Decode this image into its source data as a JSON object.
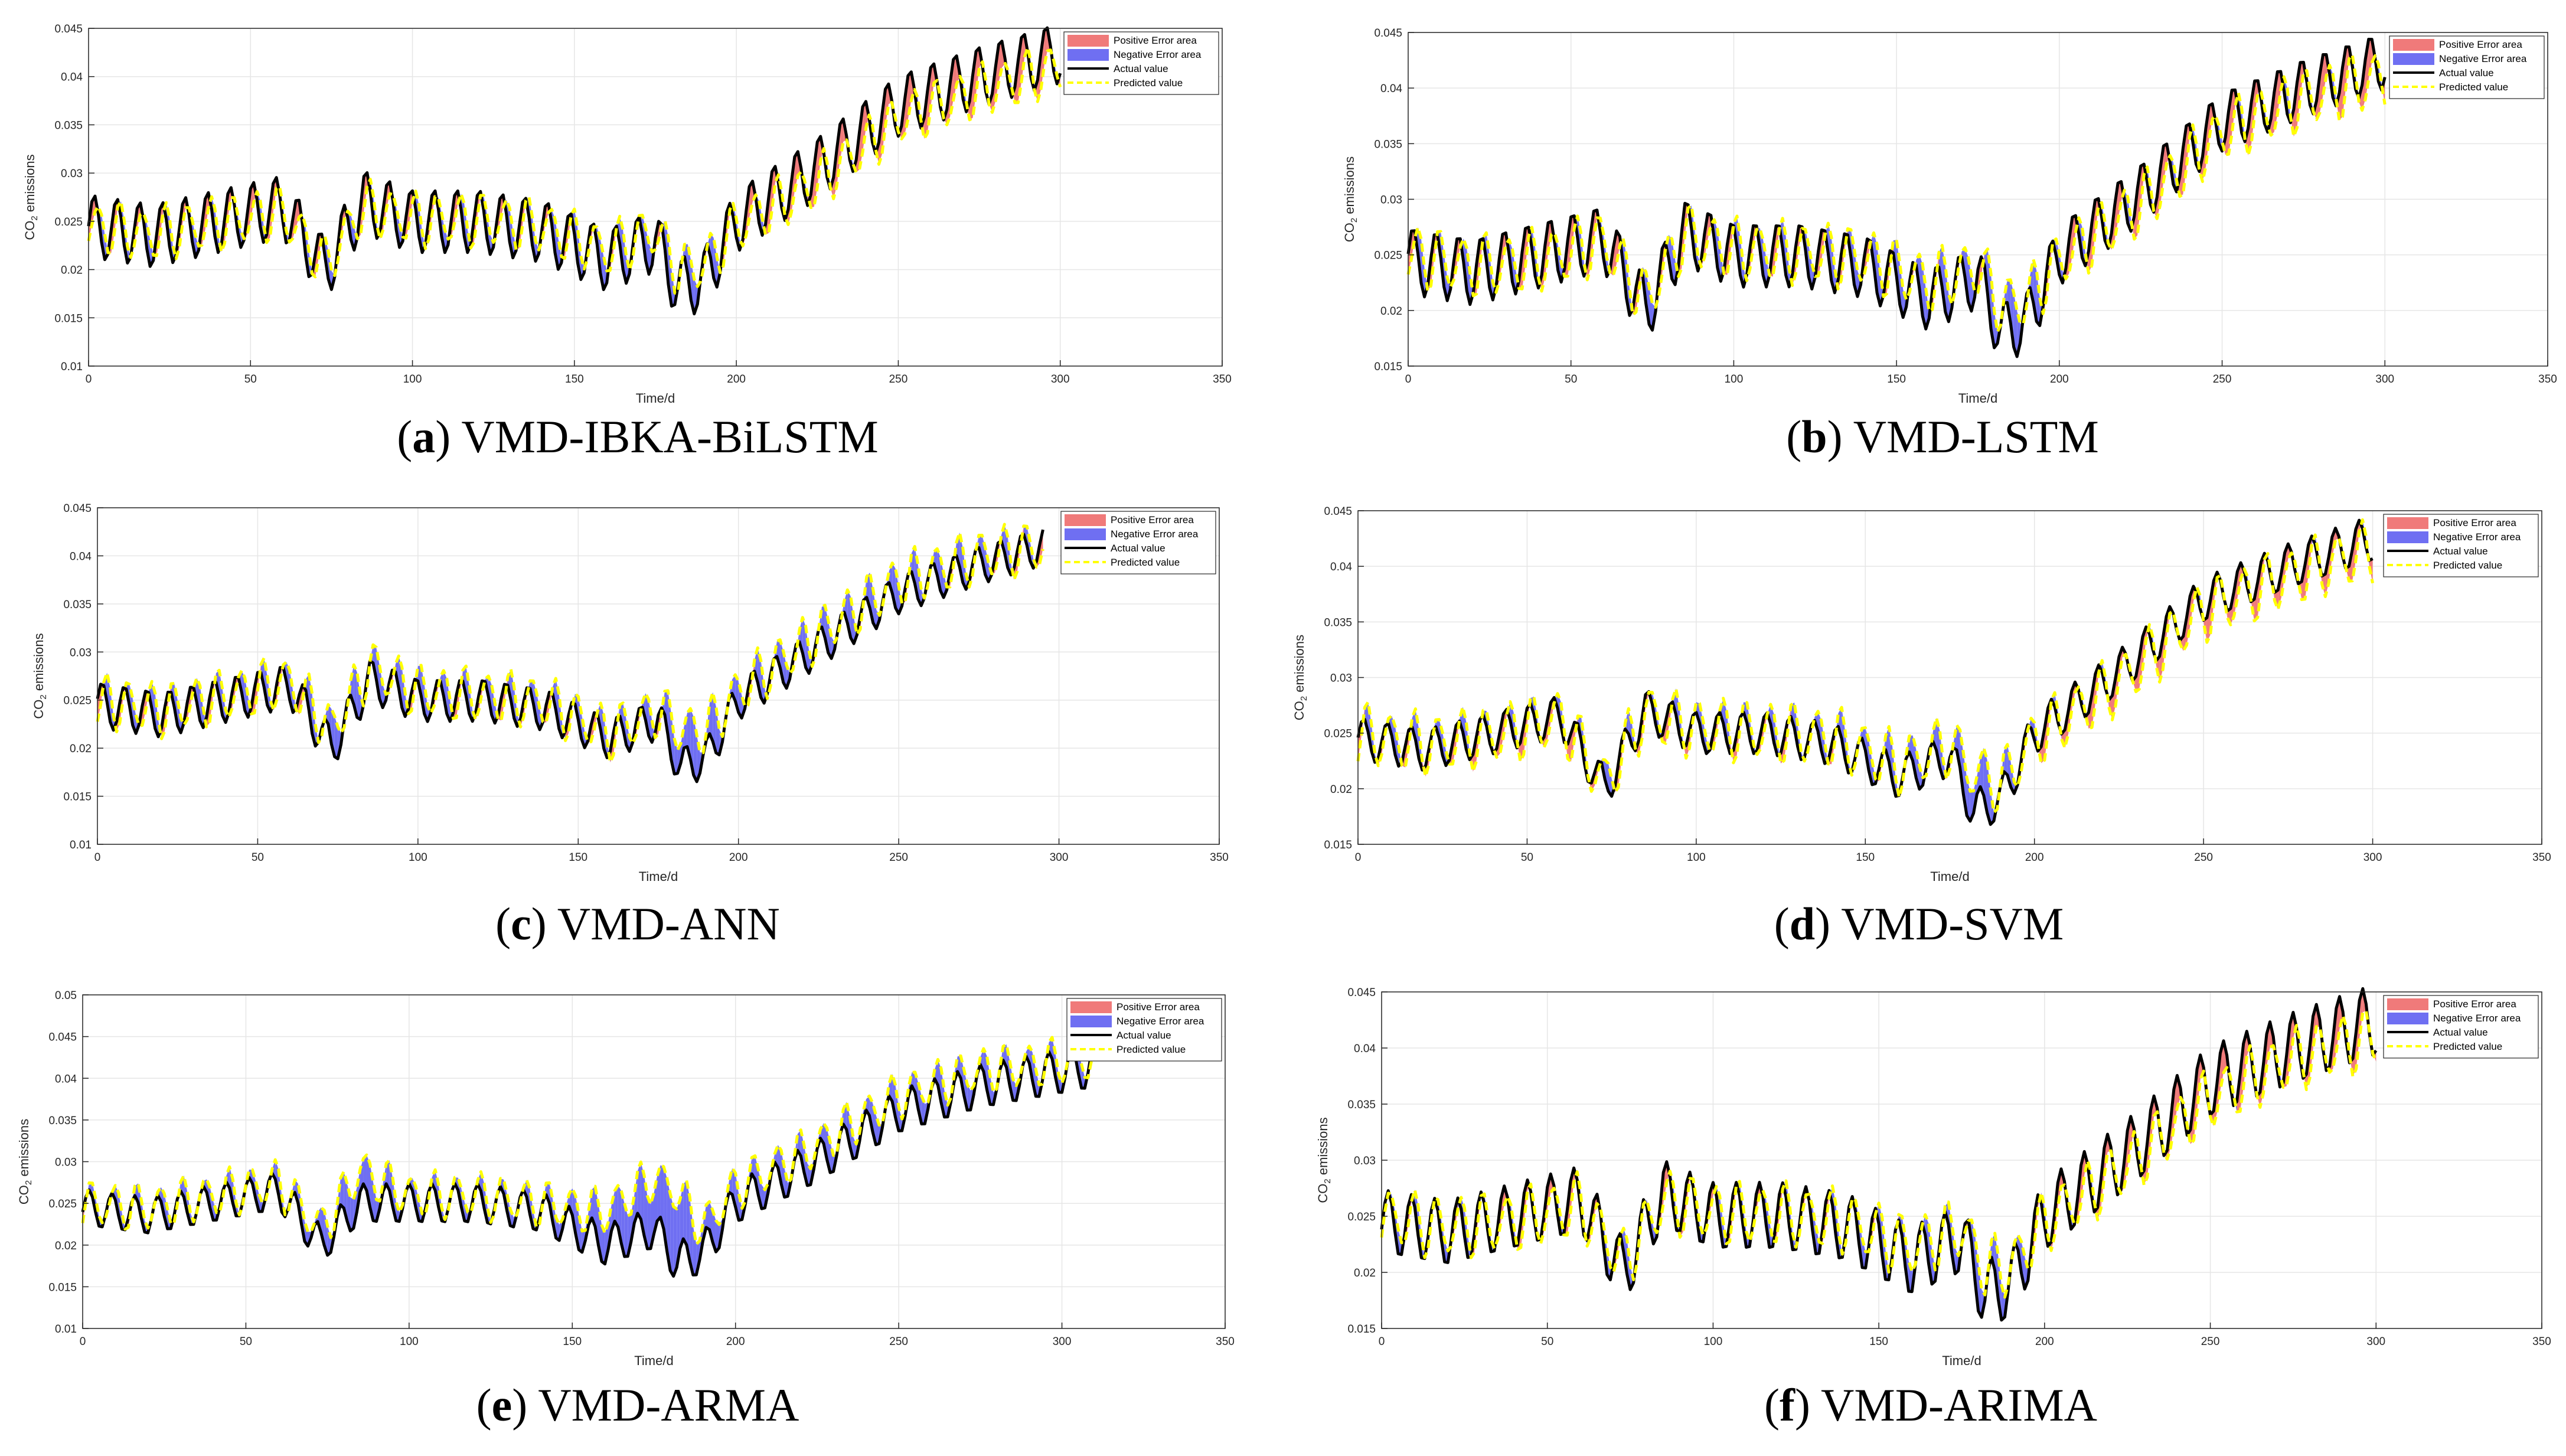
{
  "figure": {
    "xlabel": "Time/d",
    "ylabel_prefix": "CO",
    "ylabel_subscript": "2",
    "ylabel_suffix": " emissions",
    "legend": [
      "Positive Error area",
      "Negative Error area",
      "Actual value",
      "Predicted value"
    ],
    "colors": {
      "positive": "#f07a7a",
      "negative": "#6f6ff2",
      "actual": "#000000",
      "predicted": "#ffff00",
      "grid": "#e6e6e6"
    }
  },
  "captions": [
    {
      "letter": "a",
      "title": "VMD-IBKA-BiLSTM"
    },
    {
      "letter": "b",
      "title": "VMD-LSTM"
    },
    {
      "letter": "c",
      "title": "VMD-ANN"
    },
    {
      "letter": "d",
      "title": "VMD-SVM"
    },
    {
      "letter": "e",
      "title": "VMD-ARMA"
    },
    {
      "letter": "f",
      "title": "VMD-ARIMA"
    }
  ],
  "chart_data": [
    {
      "type": "line",
      "title": "(a) VMD-IBKA-BiLSTM",
      "xlabel": "Time/d",
      "ylabel": "CO2 emissions",
      "xlim": [
        0,
        350
      ],
      "ylim": [
        0.01,
        0.045
      ],
      "xticks": [
        0,
        50,
        100,
        150,
        200,
        250,
        300,
        350
      ],
      "yticks": [
        0.01,
        0.015,
        0.02,
        0.025,
        0.03,
        0.035,
        0.04,
        0.045
      ],
      "ytick_labels": [
        "0.01",
        "0.015",
        "0.02",
        "0.025",
        "0.03",
        "0.035",
        "0.04",
        "0.045"
      ],
      "legend": "top-right",
      "grid": true,
      "series": [
        {
          "name": "Actual value",
          "x": [
            0,
            20,
            40,
            60,
            73,
            85,
            100,
            120,
            140,
            160,
            175,
            182,
            190,
            200,
            225,
            250,
            275,
            300
          ],
          "values": [
            0.0245,
            0.0235,
            0.025,
            0.0265,
            0.02,
            0.027,
            0.025,
            0.025,
            0.024,
            0.021,
            0.023,
            0.018,
            0.019,
            0.025,
            0.0305,
            0.037,
            0.04,
            0.0425
          ]
        },
        {
          "name": "Predicted value",
          "x": [
            0,
            20,
            40,
            60,
            73,
            85,
            100,
            120,
            140,
            160,
            175,
            182,
            190,
            200,
            225,
            250,
            275,
            300
          ],
          "values": [
            0.0245,
            0.0237,
            0.0248,
            0.026,
            0.0205,
            0.0265,
            0.0252,
            0.0252,
            0.0245,
            0.022,
            0.024,
            0.02,
            0.0205,
            0.0245,
            0.029,
            0.0355,
            0.0385,
            0.041
          ]
        }
      ]
    },
    {
      "type": "line",
      "title": "(b) VMD-LSTM",
      "xlabel": "Time/d",
      "ylabel": "CO2 emissions",
      "xlim": [
        0,
        350
      ],
      "ylim": [
        0.015,
        0.045
      ],
      "xticks": [
        0,
        50,
        100,
        150,
        200,
        250,
        300,
        350
      ],
      "yticks": [
        0.015,
        0.02,
        0.025,
        0.03,
        0.035,
        0.04,
        0.045
      ],
      "ytick_labels": [
        "0.015",
        "0.02",
        "0.025",
        "0.03",
        "0.035",
        "0.04",
        "0.045"
      ],
      "legend": "top-right",
      "grid": true,
      "series": [
        {
          "name": "Actual value",
          "x": [
            0,
            20,
            40,
            60,
            73,
            85,
            100,
            120,
            140,
            160,
            175,
            182,
            190,
            200,
            225,
            250,
            275,
            300
          ],
          "values": [
            0.0245,
            0.0235,
            0.025,
            0.0265,
            0.02,
            0.027,
            0.025,
            0.025,
            0.024,
            0.021,
            0.023,
            0.018,
            0.019,
            0.025,
            0.0305,
            0.037,
            0.04,
            0.0425
          ]
        },
        {
          "name": "Predicted value",
          "x": [
            0,
            20,
            40,
            60,
            73,
            85,
            100,
            120,
            140,
            160,
            175,
            182,
            190,
            200,
            225,
            250,
            275,
            300
          ],
          "values": [
            0.025,
            0.024,
            0.0245,
            0.0262,
            0.021,
            0.0268,
            0.0255,
            0.0252,
            0.0248,
            0.0225,
            0.024,
            0.0205,
            0.021,
            0.0245,
            0.0295,
            0.036,
            0.039,
            0.041
          ]
        }
      ]
    },
    {
      "type": "line",
      "title": "(c) VMD-ANN",
      "xlabel": "Time/d",
      "ylabel": "CO2 emissions",
      "xlim": [
        0,
        350
      ],
      "ylim": [
        0.01,
        0.045
      ],
      "xticks": [
        0,
        50,
        100,
        150,
        200,
        250,
        300,
        350
      ],
      "yticks": [
        0.01,
        0.015,
        0.02,
        0.025,
        0.03,
        0.035,
        0.04,
        0.045
      ],
      "ytick_labels": [
        "0.01",
        "0.015",
        "0.02",
        "0.025",
        "0.03",
        "0.035",
        "0.04",
        "0.045"
      ],
      "legend": "top-right",
      "grid": true,
      "series": [
        {
          "name": "Actual value",
          "x": [
            0,
            20,
            40,
            60,
            73,
            85,
            100,
            120,
            140,
            160,
            175,
            182,
            190,
            200,
            225,
            250,
            275,
            295
          ],
          "values": [
            0.0245,
            0.0235,
            0.025,
            0.0265,
            0.02,
            0.027,
            0.025,
            0.025,
            0.024,
            0.021,
            0.023,
            0.018,
            0.019,
            0.025,
            0.0305,
            0.036,
            0.039,
            0.041
          ]
        },
        {
          "name": "Predicted value",
          "x": [
            0,
            20,
            40,
            60,
            73,
            85,
            100,
            120,
            140,
            160,
            175,
            182,
            190,
            200,
            225,
            250,
            275,
            295
          ],
          "values": [
            0.025,
            0.024,
            0.0255,
            0.027,
            0.022,
            0.0285,
            0.026,
            0.0255,
            0.0248,
            0.0215,
            0.024,
            0.022,
            0.022,
            0.026,
            0.032,
            0.0375,
            0.04,
            0.041
          ]
        }
      ]
    },
    {
      "type": "line",
      "title": "(d) VMD-SVM",
      "xlabel": "Time/d",
      "ylabel": "CO2 emissions",
      "xlim": [
        0,
        350
      ],
      "ylim": [
        0.015,
        0.045
      ],
      "xticks": [
        0,
        50,
        100,
        150,
        200,
        250,
        300,
        350
      ],
      "yticks": [
        0.015,
        0.02,
        0.025,
        0.03,
        0.035,
        0.04,
        0.045
      ],
      "ytick_labels": [
        "0.015",
        "0.02",
        "0.025",
        "0.03",
        "0.035",
        "0.04",
        "0.045"
      ],
      "legend": "top-right",
      "grid": true,
      "series": [
        {
          "name": "Actual value",
          "x": [
            0,
            20,
            40,
            60,
            73,
            85,
            100,
            120,
            140,
            160,
            175,
            182,
            190,
            200,
            225,
            250,
            275,
            300
          ],
          "values": [
            0.0245,
            0.0235,
            0.025,
            0.0265,
            0.02,
            0.027,
            0.025,
            0.025,
            0.024,
            0.021,
            0.023,
            0.018,
            0.019,
            0.025,
            0.0305,
            0.037,
            0.04,
            0.0425
          ]
        },
        {
          "name": "Predicted value",
          "x": [
            0,
            20,
            40,
            60,
            73,
            85,
            100,
            120,
            140,
            160,
            175,
            182,
            190,
            200,
            225,
            250,
            275,
            300
          ],
          "values": [
            0.025,
            0.024,
            0.0248,
            0.0263,
            0.0205,
            0.0268,
            0.0255,
            0.0252,
            0.0247,
            0.0222,
            0.024,
            0.0215,
            0.0205,
            0.0245,
            0.0295,
            0.036,
            0.039,
            0.0415
          ]
        }
      ]
    },
    {
      "type": "line",
      "title": "(e) VMD-ARMA",
      "xlabel": "Time/d",
      "ylabel": "CO2 emissions",
      "xlim": [
        0,
        350
      ],
      "ylim": [
        0.01,
        0.05
      ],
      "xticks": [
        0,
        50,
        100,
        150,
        200,
        250,
        300,
        350
      ],
      "yticks": [
        0.01,
        0.015,
        0.02,
        0.025,
        0.03,
        0.035,
        0.04,
        0.045,
        0.05
      ],
      "ytick_labels": [
        "0.01",
        "0.015",
        "0.02",
        "0.025",
        "0.03",
        "0.035",
        "0.04",
        "0.045",
        "0.05"
      ],
      "legend": "top-right",
      "grid": true,
      "series": [
        {
          "name": "Actual value",
          "x": [
            0,
            20,
            40,
            60,
            73,
            85,
            100,
            120,
            140,
            160,
            175,
            182,
            190,
            200,
            225,
            250,
            275,
            310
          ],
          "values": [
            0.0245,
            0.0235,
            0.025,
            0.0265,
            0.02,
            0.025,
            0.025,
            0.025,
            0.024,
            0.02,
            0.022,
            0.018,
            0.019,
            0.025,
            0.03,
            0.036,
            0.039,
            0.0415
          ]
        },
        {
          "name": "Predicted value",
          "x": [
            0,
            20,
            40,
            60,
            73,
            85,
            100,
            120,
            140,
            160,
            175,
            182,
            190,
            200,
            225,
            250,
            275,
            310
          ],
          "values": [
            0.025,
            0.0245,
            0.026,
            0.0275,
            0.022,
            0.029,
            0.026,
            0.026,
            0.025,
            0.024,
            0.028,
            0.0265,
            0.022,
            0.027,
            0.032,
            0.038,
            0.041,
            0.0425
          ]
        }
      ]
    },
    {
      "type": "line",
      "title": "(f) VMD-ARIMA",
      "xlabel": "Time/d",
      "ylabel": "CO2 emissions",
      "xlim": [
        0,
        350
      ],
      "ylim": [
        0.015,
        0.045
      ],
      "xticks": [
        0,
        50,
        100,
        150,
        200,
        250,
        300,
        350
      ],
      "yticks": [
        0.015,
        0.02,
        0.025,
        0.03,
        0.035,
        0.04,
        0.045
      ],
      "ytick_labels": [
        "0.015",
        "0.02",
        "0.025",
        "0.03",
        "0.035",
        "0.04",
        "0.045"
      ],
      "legend": "top-right",
      "grid": true,
      "series": [
        {
          "name": "Actual value",
          "x": [
            0,
            20,
            40,
            60,
            73,
            85,
            100,
            120,
            140,
            160,
            175,
            182,
            190,
            200,
            225,
            250,
            275,
            300
          ],
          "values": [
            0.0245,
            0.0235,
            0.025,
            0.0265,
            0.02,
            0.027,
            0.025,
            0.025,
            0.024,
            0.021,
            0.023,
            0.018,
            0.019,
            0.025,
            0.0305,
            0.037,
            0.04,
            0.0425
          ]
        },
        {
          "name": "Predicted value",
          "x": [
            0,
            20,
            40,
            60,
            73,
            85,
            100,
            120,
            140,
            160,
            175,
            182,
            190,
            200,
            225,
            250,
            275,
            300
          ],
          "values": [
            0.025,
            0.024,
            0.0246,
            0.026,
            0.021,
            0.0265,
            0.0253,
            0.0252,
            0.0246,
            0.0222,
            0.024,
            0.0205,
            0.0205,
            0.0245,
            0.0295,
            0.0355,
            0.039,
            0.041
          ]
        }
      ]
    }
  ]
}
